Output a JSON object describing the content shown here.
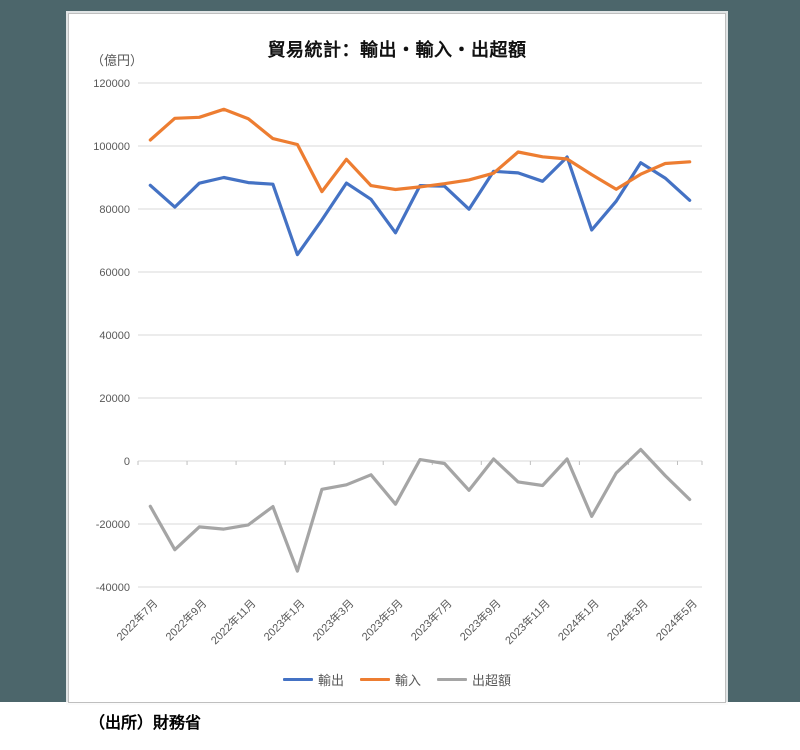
{
  "page": {
    "source": "（出所）財務省",
    "backdrop_color": "#4C666B",
    "card_color": "#FFFFFF"
  },
  "chart_data": {
    "type": "line",
    "title": "貿易統計：輸出・輸入・出超額",
    "unit_label": "（億円）",
    "x": [
      "2022年7月",
      "2022年8月",
      "2022年9月",
      "2022年10月",
      "2022年11月",
      "2022年12月",
      "2023年1月",
      "2023年2月",
      "2023年3月",
      "2023年4月",
      "2023年5月",
      "2023年6月",
      "2023年7月",
      "2023年8月",
      "2023年9月",
      "2023年10月",
      "2023年11月",
      "2023年12月",
      "2024年1月",
      "2024年2月",
      "2024年3月",
      "2024年4月",
      "2024年5月"
    ],
    "x_label_interval": 2,
    "series": [
      {
        "id": "exports",
        "name": "輸出",
        "color": "#4472C4",
        "values": [
          87530,
          80619,
          88189,
          90015,
          88379,
          87878,
          65512,
          76543,
          88220,
          83067,
          72454,
          87444,
          87251,
          79940,
          91981,
          91470,
          88793,
          96497,
          73325,
          82492,
          94707,
          89809,
          82767
        ]
      },
      {
        "id": "imports",
        "name": "輸入",
        "color": "#ED7D31",
        "values": [
          101898,
          108791,
          109125,
          111648,
          108659,
          102362,
          100478,
          85520,
          95774,
          87441,
          86182,
          87014,
          88038,
          89245,
          91357,
          98109,
          96562,
          95876,
          90910,
          86286,
          91044,
          94434,
          94980
        ]
      },
      {
        "id": "balance",
        "name": "出超額",
        "color": "#A5A5A5",
        "values": [
          -14368,
          -28172,
          -20936,
          -21633,
          -20280,
          -14484,
          -34966,
          -8977,
          -7554,
          -4374,
          -13728,
          430,
          -787,
          -9305,
          624,
          -6639,
          -7769,
          621,
          -17585,
          -3794,
          3663,
          -4625,
          -12213
        ]
      }
    ],
    "ylim": [
      -40000,
      120000
    ],
    "ytick_step": 20000,
    "grid": true,
    "gridline_color": "#D9D9D9",
    "axis_tick_color": "#BFBFBF",
    "tick_label_color": "#595959",
    "legend_position": "bottom"
  }
}
